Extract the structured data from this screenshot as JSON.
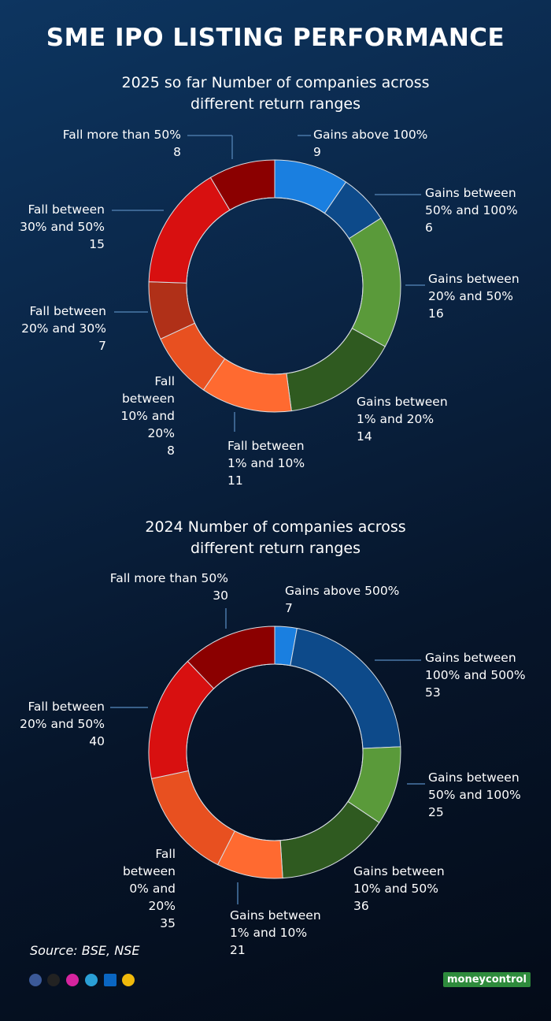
{
  "title": "SME IPO LISTING PERFORMANCE",
  "source": "Source: BSE, NSE",
  "brand": "moneycontrol",
  "chart_data": [
    {
      "type": "donut",
      "title": "2025 so far Number of companies across different return ranges",
      "categories": [
        "Gains above 100%",
        "Gains between 50% and 100%",
        "Gains between 20% and 50%",
        "Gains between 1% and 20%",
        "Fall between 1% and 10%",
        "Fall between 10% and 20%",
        "Fall between 20% and 30%",
        "Fall between 30% and 50%",
        "Fall more than 50%"
      ],
      "values": [
        9,
        6,
        16,
        14,
        11,
        8,
        7,
        15,
        8
      ],
      "colors": [
        "#1a7fe0",
        "#0d4a8a",
        "#5a9a3a",
        "#2f5a20",
        "#ff6a30",
        "#e85020",
        "#b03018",
        "#d81010",
        "#8b0000"
      ]
    },
    {
      "type": "donut",
      "title": "2024 Number of companies across different return ranges",
      "categories": [
        "Gains above 500%",
        "Gains between 100% and 500%",
        "Gains between 50% and 100%",
        "Gains between 10% and 50%",
        "Gains between 1% and 10%",
        "Fall between 0% and 20%",
        "Fall between 20% and 50%",
        "Fall more than 50%"
      ],
      "values": [
        7,
        53,
        25,
        36,
        21,
        35,
        40,
        30
      ],
      "colors": [
        "#1a7fe0",
        "#0d4a8a",
        "#5a9a3a",
        "#2f5a20",
        "#ff6a30",
        "#e85020",
        "#d81010",
        "#8b0000"
      ]
    }
  ]
}
